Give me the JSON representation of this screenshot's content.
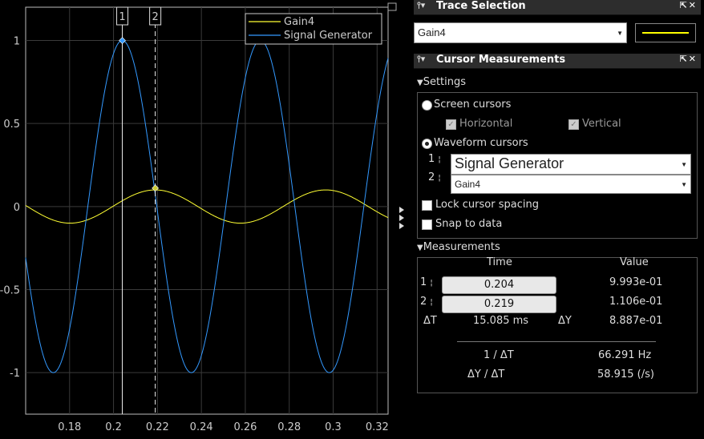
{
  "chart_data": {
    "type": "line",
    "xlim": [
      0.16,
      0.325
    ],
    "ylim": [
      -1.25,
      1.2
    ],
    "x_ticks": [
      "0.18",
      "0.2",
      "0.22",
      "0.24",
      "0.26",
      "0.28",
      "0.3",
      "0.32"
    ],
    "x_tick_values": [
      0.18,
      0.2,
      0.22,
      0.24,
      0.26,
      0.28,
      0.3,
      0.32
    ],
    "y_ticks": [
      "1",
      "0.5",
      "0",
      "-0.5",
      "-1"
    ],
    "y_tick_values": [
      1,
      0.5,
      0,
      -0.5,
      -1
    ],
    "grid": true,
    "legend_position": "top-right",
    "series": [
      {
        "name": "Gain4",
        "color": "#ffff33",
        "amplitude": 0.1,
        "frequency_hz": 12.887,
        "peak_time": 0.219
      },
      {
        "name": "Signal Generator",
        "color": "#3399ff",
        "amplitude": 1.0,
        "frequency_hz": 15.915,
        "peak_time": 0.204
      }
    ],
    "cursors": [
      {
        "label": "1",
        "x": 0.204,
        "y": 0.9993,
        "style": "solid",
        "color": "#3399ff"
      },
      {
        "label": "2",
        "x": 0.219,
        "y": 0.1106,
        "style": "dashed",
        "color": "#cccc33"
      }
    ]
  },
  "trace_selection": {
    "title": "Trace Selection",
    "selected": "Gain4",
    "line_color": "#ffff00"
  },
  "cursor_measurements": {
    "title": "Cursor Measurements",
    "settings": {
      "title": "Settings",
      "screen_cursors": "Screen cursors",
      "horizontal": "Horizontal",
      "vertical": "Vertical",
      "waveform_cursors": "Waveform cursors",
      "cursor1_label": "1",
      "cursor2_label": "2",
      "cursor1_signal": "Signal Generator",
      "cursor2_signal": "Gain4",
      "lock_spacing": "Lock cursor spacing",
      "snap_to_data": "Snap to data"
    },
    "measurements": {
      "title": "Measurements",
      "col_time": "Time",
      "col_value": "Value",
      "row1_label": "1",
      "row1_time": "0.204",
      "row1_value": "9.993e-01",
      "row2_label": "2",
      "row2_time": "0.219",
      "row2_value": "1.106e-01",
      "dt_label": "ΔT",
      "dt_value": "15.085 ms",
      "dy_label": "ΔY",
      "dy_value": "8.887e-01",
      "inv_dt_label": "1 / ΔT",
      "inv_dt_value": "66.291 Hz",
      "dydt_label": "ΔY / ΔT",
      "dydt_value": "58.915 (/s)"
    }
  }
}
